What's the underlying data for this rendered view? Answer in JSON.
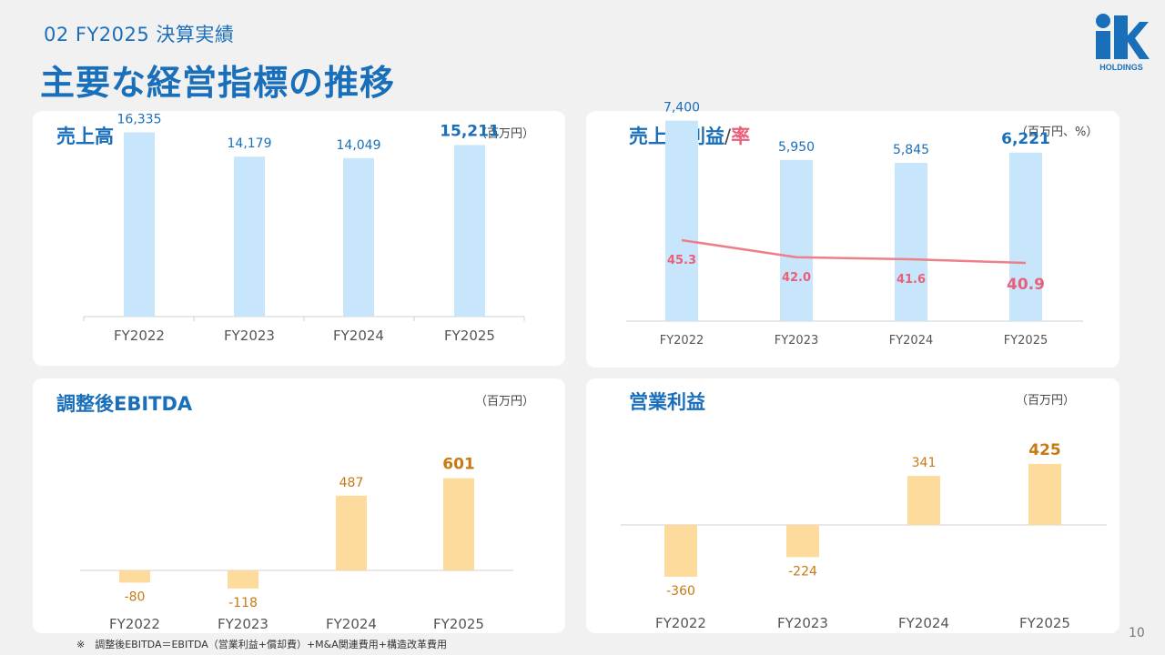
{
  "header": {
    "section": "02  FY2025  決算実績",
    "title": "主要な経営指標の推移",
    "logo_text": "HOLDINGS"
  },
  "colors": {
    "blue_bar": "#c8e6fb",
    "orange_bar": "#fcdb9d",
    "blue_text": "#1a6fbb",
    "orange_text": "#c87a12",
    "rate_line": "#ec7f88",
    "rate_text": "#e8607a"
  },
  "cards": {
    "sales": {
      "title": "売上高",
      "unit": "（百万円）"
    },
    "gross": {
      "title_main": "売上総利益",
      "title_slash": "/",
      "title_rate": "率",
      "unit": "（百万円、%）"
    },
    "ebitda": {
      "title": "調整後EBITDA",
      "unit": "（百万円）"
    },
    "op": {
      "title": "営業利益",
      "unit": "（百万円）"
    }
  },
  "footnote": "※　調整後EBITDA＝EBITDA（営業利益+償却費）+M&A関連費用+構造改革費用",
  "page_number": "10",
  "chart_data": [
    {
      "id": "sales",
      "type": "bar",
      "title": "売上高",
      "categories": [
        "FY2022",
        "FY2023",
        "FY2024",
        "FY2025"
      ],
      "values": [
        16335,
        14179,
        14049,
        15211
      ],
      "labels": [
        "16,335",
        "14,179",
        "14,049",
        "15,211"
      ],
      "ylim": [
        0,
        20000
      ]
    },
    {
      "id": "gross",
      "type": "bar+line",
      "title": "売上総利益/率",
      "categories": [
        "FY2022",
        "FY2023",
        "FY2024",
        "FY2025"
      ],
      "series": [
        {
          "values": [
            7400,
            5950,
            5845,
            6221
          ],
          "labels": [
            "7,400",
            "5,950",
            "5,845",
            "6,221"
          ]
        },
        {
          "values": [
            45.3,
            42.0,
            41.6,
            40.9
          ],
          "labels": [
            "45.3",
            "42.0",
            "41.6",
            "40.9"
          ]
        }
      ],
      "ylim": [
        0,
        9000
      ]
    },
    {
      "id": "ebitda",
      "type": "bar",
      "title": "調整後EBITDA",
      "categories": [
        "FY2022",
        "FY2023",
        "FY2024",
        "FY2025"
      ],
      "values": [
        -80,
        -118,
        487,
        601
      ],
      "labels": [
        "-80",
        "-118",
        "487",
        "601"
      ],
      "ylim": [
        -200,
        700
      ]
    },
    {
      "id": "op",
      "type": "bar",
      "title": "営業利益",
      "categories": [
        "FY2022",
        "FY2023",
        "FY2024",
        "FY2025"
      ],
      "values": [
        -360,
        -224,
        341,
        425
      ],
      "labels": [
        "-360",
        "-224",
        "341",
        "425"
      ],
      "ylim": [
        -400,
        500
      ]
    }
  ]
}
